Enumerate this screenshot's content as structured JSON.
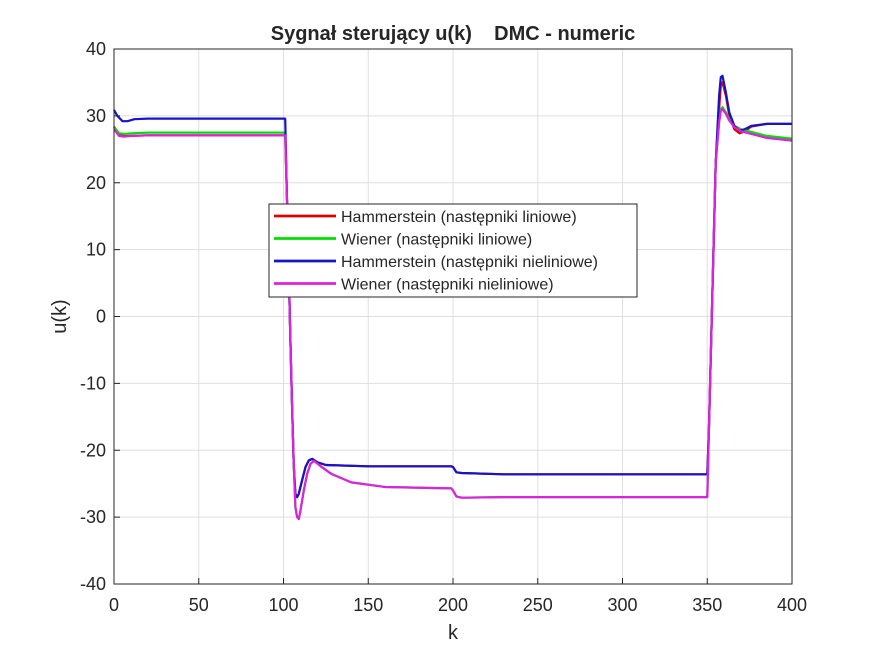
{
  "chart_data": {
    "type": "line",
    "title": "Sygnał sterujący u(k)    DMC - numeric",
    "xlabel": "k",
    "ylabel": "u(k)",
    "xlim": [
      0,
      400
    ],
    "ylim": [
      -40,
      40
    ],
    "xticks": [
      0,
      50,
      100,
      150,
      200,
      250,
      300,
      350,
      400
    ],
    "yticks": [
      -40,
      -30,
      -20,
      -10,
      0,
      10,
      20,
      30,
      40
    ],
    "grid": true,
    "legend_position": "center-left",
    "series": [
      {
        "name": "Hammerstein (następniki liniowe)",
        "color": "#e00000",
        "points": [
          [
            0,
            28.4
          ],
          [
            3,
            27.3
          ],
          [
            6,
            27.0
          ],
          [
            10,
            27.0
          ],
          [
            20,
            27.1
          ],
          [
            100,
            27.1
          ],
          [
            101,
            27.1
          ],
          [
            102,
            18
          ],
          [
            103,
            8
          ],
          [
            104,
            -3
          ],
          [
            105,
            -13
          ],
          [
            106,
            -22
          ],
          [
            107,
            -26.5
          ],
          [
            108,
            -27
          ],
          [
            109,
            -26.5
          ],
          [
            111,
            -24.5
          ],
          [
            113,
            -22.5
          ],
          [
            115,
            -21.5
          ],
          [
            117,
            -21.3
          ],
          [
            120,
            -21.8
          ],
          [
            125,
            -22.2
          ],
          [
            150,
            -22.4
          ],
          [
            199,
            -22.4
          ],
          [
            200,
            -22.5
          ],
          [
            202,
            -23.3
          ],
          [
            205,
            -23.4
          ],
          [
            230,
            -23.6
          ],
          [
            350,
            -23.6
          ],
          [
            351,
            -17
          ],
          [
            352,
            -7
          ],
          [
            353,
            3
          ],
          [
            354,
            13
          ],
          [
            355,
            23
          ],
          [
            357,
            31
          ],
          [
            358,
            34.5
          ],
          [
            359,
            35
          ],
          [
            361,
            33
          ],
          [
            363,
            30
          ],
          [
            366,
            28
          ],
          [
            369,
            27.4
          ],
          [
            372,
            27.7
          ],
          [
            376,
            28.4
          ],
          [
            385,
            28.8
          ],
          [
            400,
            28.8
          ]
        ]
      },
      {
        "name": "Wiener (następniki liniowe)",
        "color": "#00e000",
        "points": [
          [
            0,
            28.3
          ],
          [
            3,
            27.4
          ],
          [
            6,
            27.3
          ],
          [
            10,
            27.4
          ],
          [
            20,
            27.5
          ],
          [
            100,
            27.5
          ],
          [
            101,
            27.5
          ],
          [
            102,
            18
          ],
          [
            103,
            8
          ],
          [
            104,
            -3
          ],
          [
            105,
            -13
          ],
          [
            106,
            -22
          ],
          [
            107,
            -28.5
          ],
          [
            108,
            -30
          ],
          [
            109,
            -30.3
          ],
          [
            110,
            -29
          ],
          [
            112,
            -26
          ],
          [
            114,
            -23.5
          ],
          [
            116,
            -22
          ],
          [
            118,
            -21.6
          ],
          [
            122,
            -22.4
          ],
          [
            128,
            -23.5
          ],
          [
            140,
            -24.8
          ],
          [
            160,
            -25.5
          ],
          [
            199,
            -25.7
          ],
          [
            200,
            -26
          ],
          [
            202,
            -26.9
          ],
          [
            205,
            -27.1
          ],
          [
            230,
            -27
          ],
          [
            350,
            -27
          ],
          [
            351,
            -17
          ],
          [
            352,
            -7
          ],
          [
            353,
            3
          ],
          [
            354,
            13
          ],
          [
            355,
            23
          ],
          [
            357,
            29
          ],
          [
            358,
            31
          ],
          [
            359,
            31.3
          ],
          [
            361,
            30.5
          ],
          [
            363,
            29.5
          ],
          [
            366,
            28.5
          ],
          [
            370,
            28
          ],
          [
            376,
            27.6
          ],
          [
            385,
            27
          ],
          [
            400,
            26.6
          ]
        ]
      },
      {
        "name": "Hammerstein (następniki nieliniowe)",
        "color": "#1414c8",
        "points": [
          [
            0,
            30.9
          ],
          [
            2,
            30
          ],
          [
            5,
            29.2
          ],
          [
            8,
            29.2
          ],
          [
            12,
            29.5
          ],
          [
            20,
            29.6
          ],
          [
            100,
            29.6
          ],
          [
            101,
            29.6
          ],
          [
            102,
            18
          ],
          [
            103,
            8
          ],
          [
            104,
            -3
          ],
          [
            105,
            -13
          ],
          [
            106,
            -22
          ],
          [
            107,
            -26.7
          ],
          [
            108,
            -27
          ],
          [
            109,
            -26.5
          ],
          [
            111,
            -24.5
          ],
          [
            113,
            -22.5
          ],
          [
            115,
            -21.5
          ],
          [
            117,
            -21.3
          ],
          [
            120,
            -21.8
          ],
          [
            125,
            -22.2
          ],
          [
            150,
            -22.4
          ],
          [
            199,
            -22.4
          ],
          [
            200,
            -22.5
          ],
          [
            202,
            -23.3
          ],
          [
            205,
            -23.4
          ],
          [
            230,
            -23.6
          ],
          [
            350,
            -23.6
          ],
          [
            351,
            -17
          ],
          [
            352,
            -7
          ],
          [
            353,
            3
          ],
          [
            354,
            13
          ],
          [
            355,
            23
          ],
          [
            357,
            33
          ],
          [
            358,
            35.8
          ],
          [
            359,
            36
          ],
          [
            361,
            33.5
          ],
          [
            363,
            30.5
          ],
          [
            366,
            28.5
          ],
          [
            369,
            27.8
          ],
          [
            372,
            28
          ],
          [
            376,
            28.5
          ],
          [
            385,
            28.8
          ],
          [
            400,
            28.8
          ]
        ]
      },
      {
        "name": "Wiener (następniki nieliniowe)",
        "color": "#e020e0",
        "points": [
          [
            0,
            28.0
          ],
          [
            3,
            27.0
          ],
          [
            6,
            26.9
          ],
          [
            10,
            27.0
          ],
          [
            20,
            27.1
          ],
          [
            100,
            27.1
          ],
          [
            101,
            27.1
          ],
          [
            102,
            18
          ],
          [
            103,
            8
          ],
          [
            104,
            -3
          ],
          [
            105,
            -13
          ],
          [
            106,
            -22
          ],
          [
            107,
            -28.5
          ],
          [
            108,
            -30
          ],
          [
            109,
            -30.3
          ],
          [
            110,
            -29
          ],
          [
            112,
            -26
          ],
          [
            114,
            -23.5
          ],
          [
            116,
            -22
          ],
          [
            118,
            -21.6
          ],
          [
            122,
            -22.4
          ],
          [
            128,
            -23.5
          ],
          [
            140,
            -24.8
          ],
          [
            160,
            -25.5
          ],
          [
            199,
            -25.7
          ],
          [
            200,
            -26
          ],
          [
            202,
            -26.9
          ],
          [
            205,
            -27.1
          ],
          [
            230,
            -27
          ],
          [
            350,
            -27
          ],
          [
            351,
            -17
          ],
          [
            352,
            -7
          ],
          [
            353,
            3
          ],
          [
            354,
            13
          ],
          [
            355,
            23
          ],
          [
            357,
            29
          ],
          [
            358,
            30.8
          ],
          [
            359,
            31
          ],
          [
            361,
            30.3
          ],
          [
            363,
            29.3
          ],
          [
            366,
            28.3
          ],
          [
            370,
            27.7
          ],
          [
            376,
            27.3
          ],
          [
            385,
            26.7
          ],
          [
            400,
            26.3
          ]
        ]
      }
    ]
  }
}
